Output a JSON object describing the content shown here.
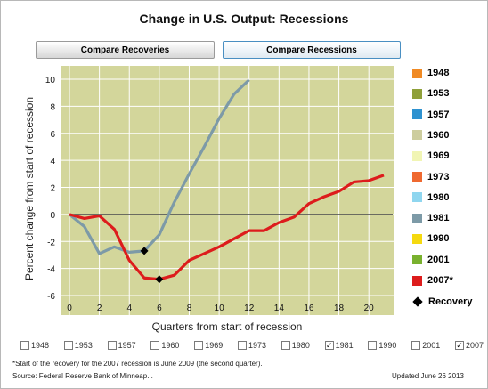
{
  "title": "Change in U.S. Output: Recessions",
  "buttons": {
    "compare_recoveries": "Compare Recoveries",
    "compare_recessions": "Compare Recessions"
  },
  "colors": {
    "plot_bg": "#d3d69b",
    "grid": "#ffffff",
    "zero_line": "#444444",
    "button_active_border": "#4a8fc2"
  },
  "legend": {
    "items": [
      {
        "label": "1948",
        "color": "#f08a24"
      },
      {
        "label": "1953",
        "color": "#8fa03a"
      },
      {
        "label": "1957",
        "color": "#2e92d0"
      },
      {
        "label": "1960",
        "color": "#cdcd9e"
      },
      {
        "label": "1969",
        "color": "#f1f5b4"
      },
      {
        "label": "1973",
        "color": "#ef6930"
      },
      {
        "label": "1980",
        "color": "#8fd6ef"
      },
      {
        "label": "1981",
        "color": "#7d9aa7"
      },
      {
        "label": "1990",
        "color": "#f5d90f"
      },
      {
        "label": "2001",
        "color": "#79b12e"
      },
      {
        "label": "2007*",
        "color": "#dd1c1c"
      }
    ],
    "recovery_label": "Recovery",
    "recovery_icon": "black-diamond-icon"
  },
  "chart_data": {
    "type": "line",
    "xlabel": "Quarters from start of recession",
    "ylabel": "Percent change from start of recession",
    "xlim": [
      0,
      21
    ],
    "ylim": [
      -6,
      10
    ],
    "x_ticks": [
      0,
      2,
      4,
      6,
      8,
      10,
      12,
      14,
      16,
      18,
      20
    ],
    "y_ticks": [
      -6,
      -4,
      -2,
      0,
      2,
      4,
      6,
      8,
      10
    ],
    "grid": true,
    "series": [
      {
        "name": "1981",
        "color": "#7d9aa7",
        "x": [
          0,
          1,
          2,
          3,
          4,
          5,
          6,
          7,
          8,
          9,
          10,
          11,
          12
        ],
        "y": [
          0,
          -0.9,
          -2.9,
          -2.4,
          -2.8,
          -2.7,
          -1.5,
          0.9,
          3.0,
          5.0,
          7.1,
          8.9,
          9.95
        ]
      },
      {
        "name": "2007*",
        "color": "#dd1c1c",
        "x": [
          0,
          1,
          2,
          3,
          4,
          5,
          6,
          7,
          8,
          9,
          10,
          11,
          12,
          13,
          14,
          15,
          16,
          17,
          18,
          19,
          20,
          21
        ],
        "y": [
          0,
          -0.3,
          -0.1,
          -1.1,
          -3.4,
          -4.7,
          -4.8,
          -4.5,
          -3.4,
          -2.9,
          -2.4,
          -1.8,
          -1.2,
          -1.2,
          -0.6,
          -0.2,
          0.8,
          1.3,
          1.7,
          2.4,
          2.5,
          2.9
        ]
      }
    ],
    "recovery_points": [
      {
        "series": "1981",
        "x": 5,
        "y": -2.7
      },
      {
        "series": "2007*",
        "x": 6,
        "y": -4.8
      }
    ]
  },
  "checkboxes": [
    {
      "label": "1948",
      "checked": false
    },
    {
      "label": "1953",
      "checked": false
    },
    {
      "label": "1957",
      "checked": false
    },
    {
      "label": "1960",
      "checked": false
    },
    {
      "label": "1969",
      "checked": false
    },
    {
      "label": "1973",
      "checked": false
    },
    {
      "label": "1980",
      "checked": false
    },
    {
      "label": "1981",
      "checked": true
    },
    {
      "label": "1990",
      "checked": false
    },
    {
      "label": "2001",
      "checked": false
    },
    {
      "label": "2007",
      "checked": true
    }
  ],
  "footnote": "*Start of the recovery for the 2007 recession is June 2009 (the second quarter).",
  "source": "Source: Federal Reserve Bank of Minneap...",
  "updated": "Updated June 26 2013"
}
